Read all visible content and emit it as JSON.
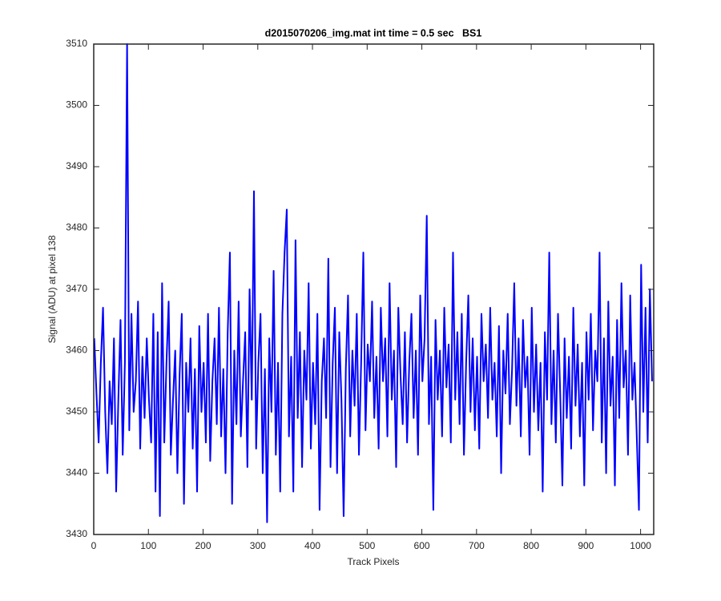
{
  "chart_data": {
    "type": "line",
    "title": "d2015070206_img.mat int time = 0.5 sec   BS1",
    "xlabel": "Track Pixels",
    "ylabel": "Signal (ADU) at pixel 138",
    "xlim": [
      0,
      1024
    ],
    "ylim": [
      3430,
      3510
    ],
    "xticks": [
      0,
      100,
      200,
      300,
      400,
      500,
      600,
      700,
      800,
      900,
      1000
    ],
    "yticks": [
      3430,
      3440,
      3450,
      3460,
      3470,
      3480,
      3490,
      3500,
      3510
    ],
    "grid": false,
    "x": [
      1,
      5,
      9,
      13,
      17,
      21,
      25,
      29,
      33,
      37,
      41,
      45,
      49,
      53,
      57,
      61,
      65,
      69,
      73,
      77,
      81,
      85,
      89,
      93,
      97,
      101,
      105,
      109,
      113,
      117,
      121,
      125,
      129,
      133,
      137,
      141,
      145,
      149,
      153,
      157,
      161,
      165,
      169,
      173,
      177,
      181,
      185,
      189,
      193,
      197,
      201,
      205,
      209,
      213,
      217,
      221,
      225,
      229,
      233,
      237,
      241,
      245,
      249,
      253,
      257,
      261,
      265,
      269,
      273,
      277,
      281,
      285,
      289,
      293,
      297,
      301,
      305,
      309,
      313,
      317,
      321,
      325,
      329,
      333,
      337,
      341,
      345,
      349,
      353,
      357,
      361,
      365,
      369,
      373,
      377,
      381,
      385,
      389,
      393,
      397,
      401,
      405,
      409,
      413,
      417,
      421,
      425,
      429,
      433,
      437,
      441,
      445,
      449,
      453,
      457,
      461,
      465,
      469,
      473,
      477,
      481,
      485,
      489,
      493,
      497,
      501,
      505,
      509,
      513,
      517,
      521,
      525,
      529,
      533,
      537,
      541,
      545,
      549,
      553,
      557,
      561,
      565,
      569,
      573,
      577,
      581,
      585,
      589,
      593,
      597,
      601,
      605,
      609,
      613,
      617,
      621,
      625,
      629,
      633,
      637,
      641,
      645,
      649,
      653,
      657,
      661,
      665,
      669,
      673,
      677,
      681,
      685,
      689,
      693,
      697,
      701,
      705,
      709,
      713,
      717,
      721,
      725,
      729,
      733,
      737,
      741,
      745,
      749,
      753,
      757,
      761,
      765,
      769,
      773,
      777,
      781,
      785,
      789,
      793,
      797,
      801,
      805,
      809,
      813,
      817,
      821,
      825,
      829,
      833,
      837,
      841,
      845,
      849,
      853,
      857,
      861,
      865,
      869,
      873,
      877,
      881,
      885,
      889,
      893,
      897,
      901,
      905,
      909,
      913,
      917,
      921,
      925,
      929,
      933,
      937,
      941,
      945,
      949,
      953,
      957,
      961,
      965,
      969,
      973,
      977,
      981,
      985,
      989,
      993,
      997,
      1001,
      1005,
      1009,
      1013,
      1017,
      1021
    ],
    "series": [
      {
        "color": "#0000ff",
        "values": [
          3462,
          3453,
          3445,
          3458,
          3467,
          3450,
          3440,
          3455,
          3448,
          3462,
          3437,
          3452,
          3465,
          3443,
          3458,
          3510,
          3447,
          3466,
          3450,
          3455,
          3468,
          3444,
          3459,
          3449,
          3462,
          3452,
          3445,
          3466,
          3437,
          3463,
          3433,
          3471,
          3445,
          3458,
          3468,
          3443,
          3452,
          3460,
          3440,
          3456,
          3466,
          3435,
          3458,
          3450,
          3462,
          3444,
          3457,
          3437,
          3464,
          3450,
          3458,
          3445,
          3466,
          3442,
          3455,
          3462,
          3448,
          3467,
          3446,
          3457,
          3440,
          3463,
          3476,
          3435,
          3460,
          3448,
          3468,
          3446,
          3455,
          3463,
          3441,
          3470,
          3452,
          3486,
          3444,
          3458,
          3466,
          3440,
          3457,
          3432,
          3462,
          3450,
          3473,
          3443,
          3458,
          3437,
          3466,
          3476,
          3483,
          3446,
          3459,
          3437,
          3478,
          3449,
          3463,
          3441,
          3460,
          3452,
          3471,
          3444,
          3458,
          3448,
          3466,
          3434,
          3455,
          3462,
          3449,
          3475,
          3441,
          3458,
          3467,
          3440,
          3463,
          3452,
          3433,
          3457,
          3469,
          3446,
          3460,
          3451,
          3466,
          3443,
          3458,
          3476,
          3447,
          3461,
          3455,
          3468,
          3449,
          3459,
          3444,
          3467,
          3455,
          3462,
          3446,
          3471,
          3452,
          3460,
          3441,
          3467,
          3456,
          3448,
          3463,
          3445,
          3458,
          3466,
          3449,
          3460,
          3443,
          3469,
          3455,
          3462,
          3482,
          3448,
          3459,
          3434,
          3465,
          3452,
          3460,
          3446,
          3467,
          3454,
          3461,
          3445,
          3476,
          3452,
          3463,
          3448,
          3466,
          3443,
          3458,
          3469,
          3450,
          3462,
          3447,
          3459,
          3444,
          3466,
          3455,
          3461,
          3449,
          3467,
          3452,
          3458,
          3446,
          3464,
          3440,
          3460,
          3453,
          3466,
          3448,
          3457,
          3471,
          3451,
          3462,
          3446,
          3465,
          3454,
          3459,
          3443,
          3467,
          3450,
          3461,
          3447,
          3458,
          3437,
          3463,
          3452,
          3476,
          3448,
          3460,
          3445,
          3466,
          3453,
          3438,
          3462,
          3449,
          3459,
          3444,
          3467,
          3451,
          3461,
          3446,
          3458,
          3438,
          3463,
          3452,
          3466,
          3447,
          3460,
          3455,
          3476,
          3445,
          3462,
          3440,
          3468,
          3451,
          3459,
          3438,
          3465,
          3449,
          3471,
          3454,
          3460,
          3443,
          3469,
          3452,
          3458,
          3446,
          3434,
          3474,
          3450,
          3467,
          3445,
          3470,
          3455
        ]
      }
    ]
  }
}
